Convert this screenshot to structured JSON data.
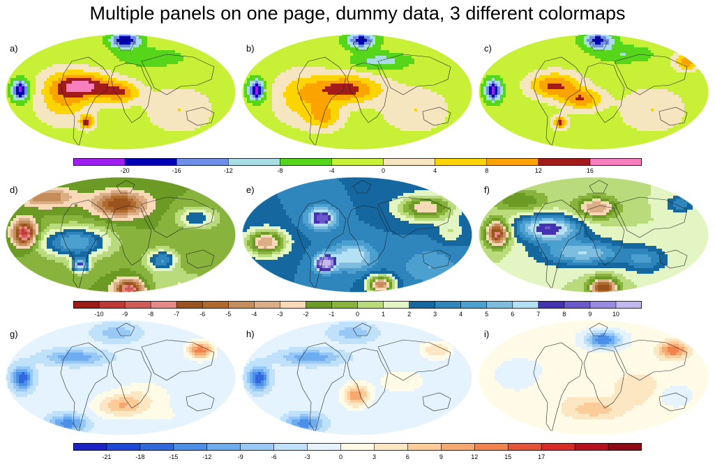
{
  "title": "Multiple panels on one page, dummy data, 3 different colormaps",
  "panel_labels": [
    "a)",
    "b)",
    "c)",
    "d)",
    "e)",
    "f)",
    "g)",
    "h)",
    "i)"
  ],
  "chart_data": [
    {
      "type": "heatmap",
      "projection": "mollweide",
      "panels": [
        "a)",
        "b)",
        "c)"
      ],
      "colorbar": {
        "colors": [
          "#a01ff0",
          "#0000b4",
          "#6f8fe6",
          "#a9dde6",
          "#56d61a",
          "#c8f036",
          "#f6e6c0",
          "#fcd400",
          "#fba400",
          "#a31b1b",
          "#f77fbe"
        ],
        "tick_labels": [
          "-20",
          "-16",
          "-12",
          "-8",
          "-4",
          "0",
          "4",
          "8",
          "12",
          "16"
        ]
      }
    },
    {
      "type": "heatmap",
      "projection": "mollweide",
      "panels": [
        "d)",
        "e)",
        "f)"
      ],
      "colorbar": {
        "colors": [
          "#9e1a14",
          "#c03a35",
          "#d05c58",
          "#e58a86",
          "#9a531c",
          "#b06a2e",
          "#c58d5c",
          "#dcae86",
          "#f8d9b8",
          "#6b9b25",
          "#88b33c",
          "#b9db7c",
          "#e4f5c4",
          "#1567a0",
          "#2e86bc",
          "#4ca0cf",
          "#7fbde0",
          "#b4e1f3",
          "#4433b0",
          "#6b58cb",
          "#978ae0",
          "#c1b8f0"
        ],
        "tick_labels": [
          "-10",
          "-9",
          "-8",
          "-7",
          "-6",
          "-5",
          "-4",
          "-3",
          "-2",
          "-1",
          "0",
          "1",
          "2",
          "3",
          "4",
          "5",
          "6",
          "7",
          "8",
          "9",
          "10"
        ]
      }
    },
    {
      "type": "heatmap",
      "projection": "mollweide",
      "panels": [
        "g)",
        "h)",
        "i)"
      ],
      "colorbar": {
        "colors": [
          "#1b22c8",
          "#1d48d8",
          "#3168de",
          "#4b8fe8",
          "#6eacf0",
          "#98c9f6",
          "#bfe2fa",
          "#e4f3fd",
          "#fffbe6",
          "#fde6c2",
          "#fbcb98",
          "#f7a870",
          "#f2834f",
          "#e65338",
          "#d82a27",
          "#b8101c",
          "#8e0914"
        ],
        "tick_labels": [
          "-21",
          "-18",
          "-15",
          "-12",
          "-9",
          "-6",
          "-3",
          "0",
          "3",
          "6",
          "9",
          "12",
          "15",
          "17"
        ]
      }
    }
  ]
}
